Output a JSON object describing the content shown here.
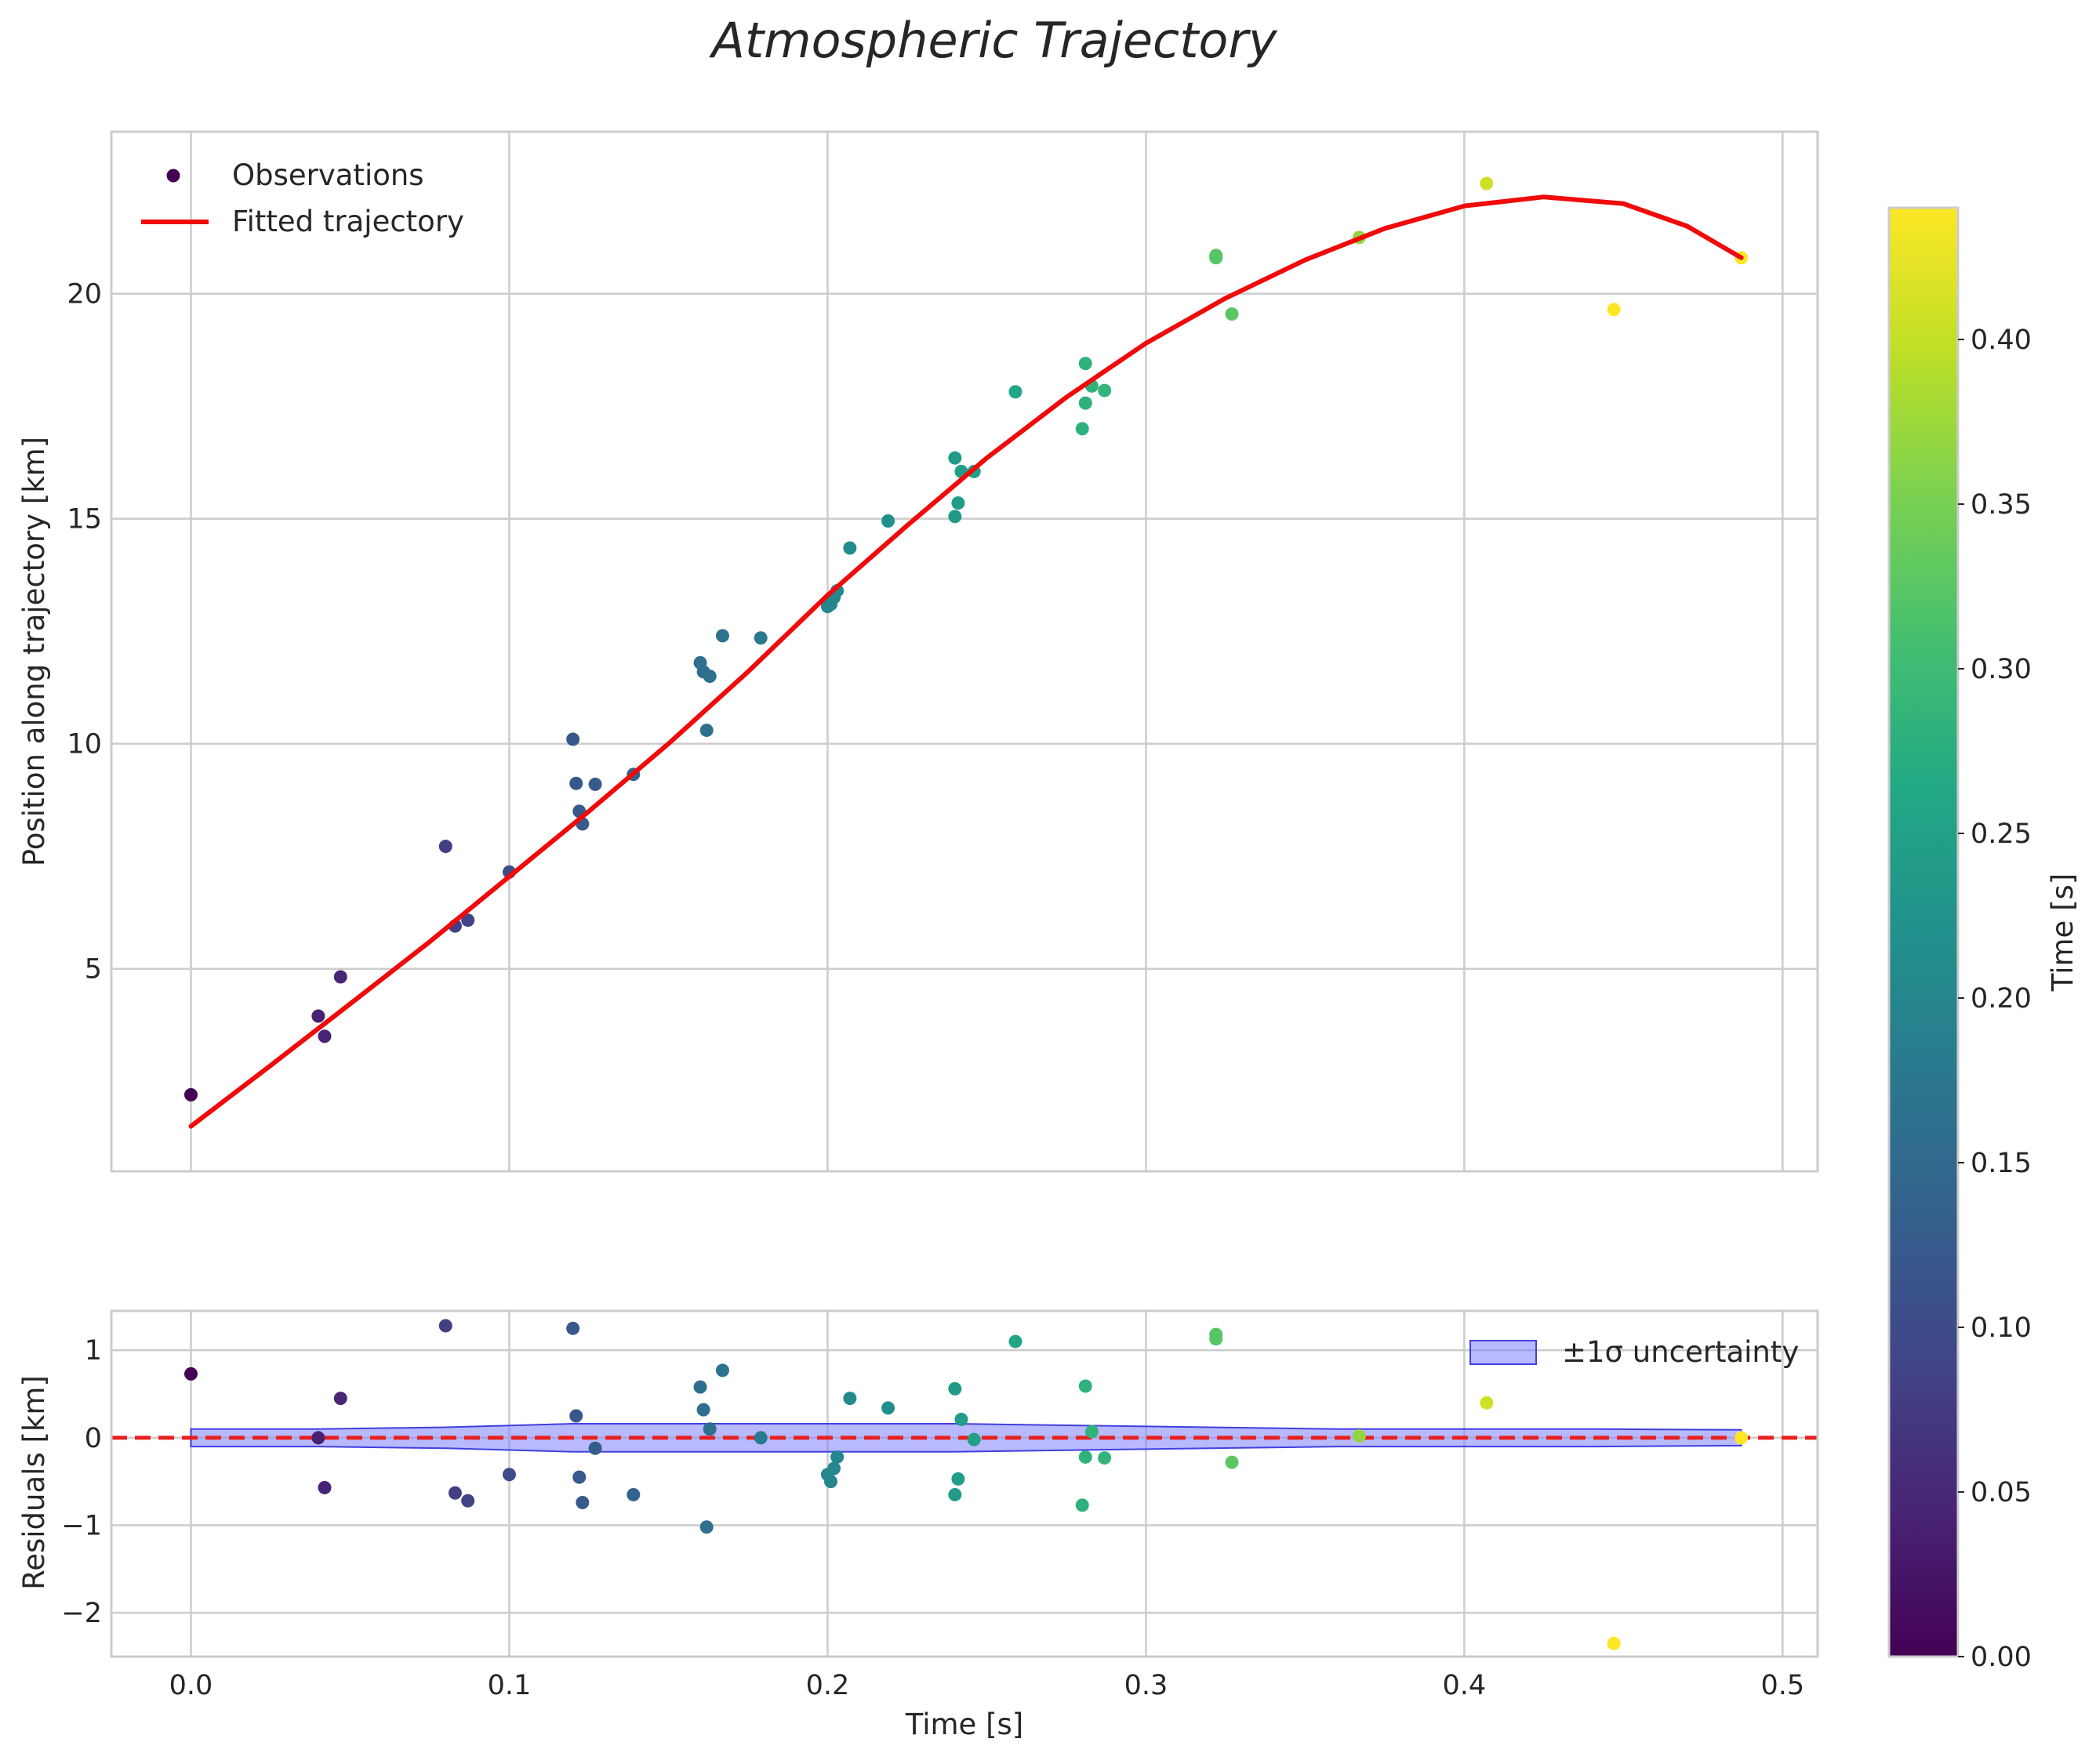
{
  "figure": {
    "title": "Atmospheric Trajectory",
    "colors": {
      "fit_line": "#f00a0a",
      "zero_line": "#e8201f",
      "band_fill": "#7f7fff",
      "band_edge": "#4040e0",
      "grid": "#cccccc"
    }
  },
  "chart_data": [
    {
      "type": "scatter",
      "panel": "top",
      "title": "Atmospheric Trajectory",
      "xlabel": "",
      "ylabel": "Position along trajectory [km]",
      "xlim": [
        -0.025,
        0.511
      ],
      "ylim": [
        0.5,
        23.6
      ],
      "xticks": [
        0.0,
        0.1,
        0.2,
        0.3,
        0.4,
        0.5
      ],
      "yticks": [
        5,
        10,
        15,
        20
      ],
      "ytick_labels": [
        "5",
        "10",
        "15",
        "20"
      ],
      "grid": true,
      "legend": {
        "location": "upper-left",
        "entries": [
          "Observations",
          "Fitted trajectory"
        ]
      },
      "series": [
        {
          "name": "Observations",
          "kind": "scatter",
          "colormap": "viridis",
          "points": [
            {
              "x": 0.0,
              "y": 2.2
            },
            {
              "x": 0.04,
              "y": 3.95
            },
            {
              "x": 0.042,
              "y": 3.5
            },
            {
              "x": 0.047,
              "y": 4.82
            },
            {
              "x": 0.08,
              "y": 7.72
            },
            {
              "x": 0.083,
              "y": 5.95
            },
            {
              "x": 0.087,
              "y": 6.08
            },
            {
              "x": 0.1,
              "y": 7.15
            },
            {
              "x": 0.12,
              "y": 10.1
            },
            {
              "x": 0.121,
              "y": 9.12
            },
            {
              "x": 0.122,
              "y": 8.5
            },
            {
              "x": 0.123,
              "y": 8.22
            },
            {
              "x": 0.127,
              "y": 9.1
            },
            {
              "x": 0.139,
              "y": 9.32
            },
            {
              "x": 0.16,
              "y": 11.8
            },
            {
              "x": 0.161,
              "y": 11.6
            },
            {
              "x": 0.162,
              "y": 10.3
            },
            {
              "x": 0.163,
              "y": 11.5
            },
            {
              "x": 0.167,
              "y": 12.4
            },
            {
              "x": 0.179,
              "y": 12.35
            },
            {
              "x": 0.2,
              "y": 13.05
            },
            {
              "x": 0.201,
              "y": 13.1
            },
            {
              "x": 0.202,
              "y": 13.25
            },
            {
              "x": 0.203,
              "y": 13.4
            },
            {
              "x": 0.207,
              "y": 14.35
            },
            {
              "x": 0.219,
              "y": 14.95
            },
            {
              "x": 0.24,
              "y": 16.35
            },
            {
              "x": 0.24,
              "y": 15.05
            },
            {
              "x": 0.241,
              "y": 15.35
            },
            {
              "x": 0.242,
              "y": 16.05
            },
            {
              "x": 0.246,
              "y": 16.05
            },
            {
              "x": 0.259,
              "y": 17.82
            },
            {
              "x": 0.28,
              "y": 17.0
            },
            {
              "x": 0.281,
              "y": 17.57
            },
            {
              "x": 0.281,
              "y": 18.45
            },
            {
              "x": 0.283,
              "y": 17.95
            },
            {
              "x": 0.287,
              "y": 17.85
            },
            {
              "x": 0.322,
              "y": 20.8
            },
            {
              "x": 0.322,
              "y": 20.85
            },
            {
              "x": 0.327,
              "y": 19.55
            },
            {
              "x": 0.367,
              "y": 21.25
            },
            {
              "x": 0.407,
              "y": 22.45
            },
            {
              "x": 0.447,
              "y": 19.65
            },
            {
              "x": 0.487,
              "y": 20.8
            }
          ]
        },
        {
          "name": "Fitted trajectory",
          "kind": "line",
          "color": "#f00a0a",
          "points": [
            {
              "x": 0.0,
              "y": 1.5
            },
            {
              "x": 0.025,
              "y": 2.85
            },
            {
              "x": 0.05,
              "y": 4.22
            },
            {
              "x": 0.075,
              "y": 5.6
            },
            {
              "x": 0.1,
              "y": 7.05
            },
            {
              "x": 0.125,
              "y": 8.5
            },
            {
              "x": 0.15,
              "y": 10.0
            },
            {
              "x": 0.175,
              "y": 11.6
            },
            {
              "x": 0.2,
              "y": 13.3
            },
            {
              "x": 0.225,
              "y": 14.85
            },
            {
              "x": 0.25,
              "y": 16.35
            },
            {
              "x": 0.275,
              "y": 17.7
            },
            {
              "x": 0.3,
              "y": 18.9
            },
            {
              "x": 0.325,
              "y": 19.9
            },
            {
              "x": 0.35,
              "y": 20.75
            },
            {
              "x": 0.375,
              "y": 21.45
            },
            {
              "x": 0.4,
              "y": 21.95
            },
            {
              "x": 0.425,
              "y": 22.15
            },
            {
              "x": 0.45,
              "y": 22.0
            },
            {
              "x": 0.47,
              "y": 21.5
            },
            {
              "x": 0.487,
              "y": 20.8
            }
          ]
        }
      ]
    },
    {
      "type": "scatter",
      "panel": "bottom",
      "xlabel": "Time [s]",
      "ylabel": "Residuals [km]",
      "xlim": [
        -0.025,
        0.511
      ],
      "ylim": [
        -2.5,
        1.45
      ],
      "xticks": [
        0.0,
        0.1,
        0.2,
        0.3,
        0.4,
        0.5
      ],
      "xtick_labels": [
        "0.0",
        "0.1",
        "0.2",
        "0.3",
        "0.4",
        "0.5"
      ],
      "yticks": [
        -2,
        -1,
        0,
        1
      ],
      "ytick_labels": [
        "−2",
        "−1",
        "0",
        "1"
      ],
      "grid": true,
      "legend": {
        "location": "upper-right",
        "entries": [
          "±1σ uncertainty"
        ]
      },
      "series": [
        {
          "name": "Residuals",
          "kind": "scatter",
          "colormap": "viridis",
          "points": [
            {
              "x": 0.0,
              "y": 0.73
            },
            {
              "x": 0.04,
              "y": 0.0
            },
            {
              "x": 0.042,
              "y": -0.57
            },
            {
              "x": 0.047,
              "y": 0.45
            },
            {
              "x": 0.08,
              "y": 1.28
            },
            {
              "x": 0.083,
              "y": -0.63
            },
            {
              "x": 0.087,
              "y": -0.72
            },
            {
              "x": 0.1,
              "y": -0.42
            },
            {
              "x": 0.12,
              "y": 1.25
            },
            {
              "x": 0.121,
              "y": 0.25
            },
            {
              "x": 0.122,
              "y": -0.45
            },
            {
              "x": 0.123,
              "y": -0.74
            },
            {
              "x": 0.127,
              "y": -0.12
            },
            {
              "x": 0.139,
              "y": -0.65
            },
            {
              "x": 0.16,
              "y": 0.58
            },
            {
              "x": 0.161,
              "y": 0.32
            },
            {
              "x": 0.162,
              "y": -1.02
            },
            {
              "x": 0.163,
              "y": 0.1
            },
            {
              "x": 0.167,
              "y": 0.77
            },
            {
              "x": 0.179,
              "y": 0.0
            },
            {
              "x": 0.2,
              "y": -0.42
            },
            {
              "x": 0.201,
              "y": -0.5
            },
            {
              "x": 0.202,
              "y": -0.35
            },
            {
              "x": 0.203,
              "y": -0.22
            },
            {
              "x": 0.207,
              "y": 0.45
            },
            {
              "x": 0.219,
              "y": 0.34
            },
            {
              "x": 0.24,
              "y": 0.56
            },
            {
              "x": 0.24,
              "y": -0.65
            },
            {
              "x": 0.241,
              "y": -0.47
            },
            {
              "x": 0.242,
              "y": 0.21
            },
            {
              "x": 0.246,
              "y": -0.02
            },
            {
              "x": 0.259,
              "y": 1.1
            },
            {
              "x": 0.28,
              "y": -0.77
            },
            {
              "x": 0.281,
              "y": -0.22
            },
            {
              "x": 0.281,
              "y": 0.59
            },
            {
              "x": 0.283,
              "y": 0.07
            },
            {
              "x": 0.287,
              "y": -0.23
            },
            {
              "x": 0.322,
              "y": 1.13
            },
            {
              "x": 0.322,
              "y": 1.18
            },
            {
              "x": 0.327,
              "y": -0.28
            },
            {
              "x": 0.367,
              "y": 0.02
            },
            {
              "x": 0.407,
              "y": 0.4
            },
            {
              "x": 0.447,
              "y": -2.35
            },
            {
              "x": 0.487,
              "y": 0.0
            }
          ]
        },
        {
          "name": "±1σ uncertainty",
          "kind": "band",
          "x": [
            0.0,
            0.04,
            0.08,
            0.1,
            0.12,
            0.16,
            0.2,
            0.24,
            0.28,
            0.32,
            0.36,
            0.4,
            0.44,
            0.487
          ],
          "sigma": [
            0.1,
            0.1,
            0.12,
            0.14,
            0.16,
            0.16,
            0.16,
            0.16,
            0.14,
            0.12,
            0.1,
            0.1,
            0.1,
            0.09
          ]
        },
        {
          "name": "Zero line",
          "kind": "hline",
          "y": 0,
          "style": "dashed",
          "color": "#e8201f"
        }
      ]
    },
    {
      "type": "colorbar",
      "label": "Time [s]",
      "colormap": "viridis",
      "range": [
        0.0,
        0.44
      ],
      "ticks": [
        0.0,
        0.05,
        0.1,
        0.15,
        0.2,
        0.25,
        0.3,
        0.35,
        0.4
      ],
      "tick_labels": [
        "0.00",
        "0.05",
        "0.10",
        "0.15",
        "0.20",
        "0.25",
        "0.30",
        "0.35",
        "0.40"
      ]
    }
  ]
}
